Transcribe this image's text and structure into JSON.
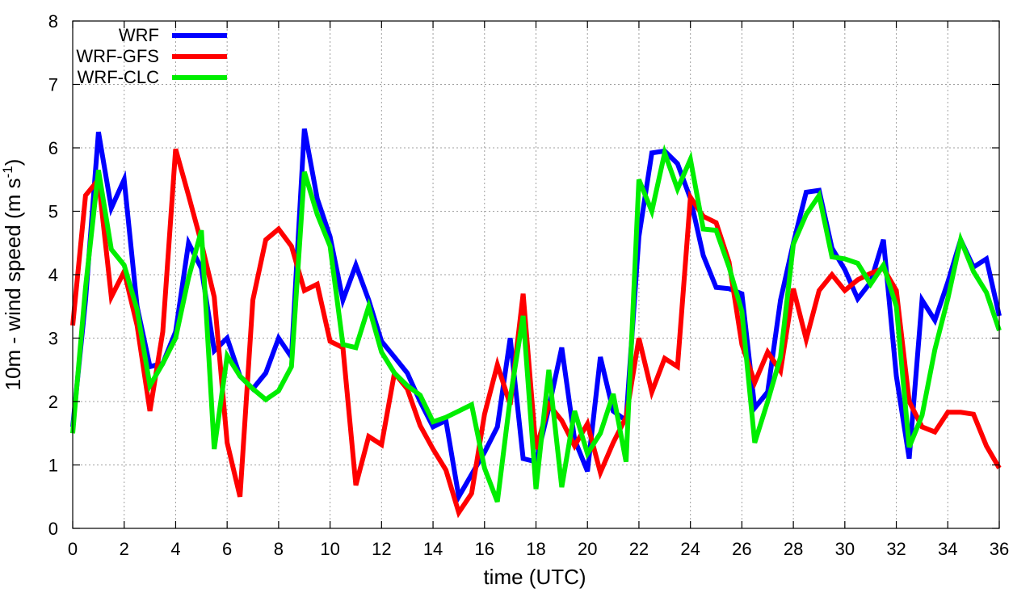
{
  "chart_data": {
    "type": "line",
    "title": "",
    "xlabel": "time (UTC)",
    "ylabel_main": "10m - wind speed  (m s",
    "ylabel_sup": "-1",
    "ylabel_close": ")",
    "xlim": [
      0,
      36
    ],
    "ylim": [
      0,
      8
    ],
    "xticks": [
      0,
      2,
      4,
      6,
      8,
      10,
      12,
      14,
      16,
      18,
      20,
      22,
      24,
      26,
      28,
      30,
      32,
      34,
      36
    ],
    "yticks": [
      0,
      1,
      2,
      3,
      4,
      5,
      6,
      7,
      8
    ],
    "grid": true,
    "legend_position": "top-left",
    "x": [
      0,
      0.5,
      1,
      1.5,
      2,
      2.5,
      3,
      3.5,
      4,
      4.5,
      5,
      5.5,
      6,
      6.5,
      7,
      7.5,
      8,
      8.5,
      9,
      9.5,
      10,
      10.5,
      11,
      11.5,
      12,
      12.5,
      13,
      13.5,
      14,
      14.5,
      15,
      15.5,
      16,
      16.5,
      17,
      17.5,
      18,
      18.5,
      19,
      19.5,
      20,
      20.5,
      21,
      21.5,
      22,
      22.5,
      23,
      23.5,
      24,
      24.5,
      25,
      25.5,
      26,
      26.5,
      27,
      27.5,
      28,
      28.5,
      29,
      29.5,
      30,
      30.5,
      31,
      31.5,
      32,
      32.5,
      33,
      33.5,
      34,
      34.5,
      35,
      35.5,
      36
    ],
    "series": [
      {
        "name": "WRF",
        "color": "#0000ff",
        "values": [
          1.6,
          3.6,
          6.25,
          5.05,
          5.5,
          3.5,
          2.55,
          2.6,
          3.1,
          4.5,
          4.1,
          2.8,
          3.0,
          2.4,
          2.2,
          2.45,
          3.0,
          2.7,
          6.3,
          5.2,
          4.6,
          3.6,
          4.15,
          3.6,
          2.95,
          2.7,
          2.45,
          2.0,
          1.6,
          1.7,
          0.5,
          0.85,
          1.2,
          1.6,
          3.0,
          1.1,
          1.05,
          1.9,
          2.85,
          1.4,
          0.9,
          2.7,
          1.85,
          1.7,
          4.6,
          5.92,
          5.95,
          5.75,
          5.2,
          4.3,
          3.8,
          3.78,
          3.7,
          1.9,
          2.15,
          3.6,
          4.5,
          5.3,
          5.33,
          4.42,
          4.08,
          3.62,
          3.88,
          4.55,
          2.4,
          1.1,
          3.6,
          3.28,
          3.88,
          4.55,
          4.12,
          4.25,
          3.35
        ]
      },
      {
        "name": "WRF-GFS",
        "color": "#ff0000",
        "values": [
          3.2,
          5.25,
          5.5,
          3.65,
          4.05,
          3.2,
          1.85,
          3.1,
          5.98,
          5.25,
          4.5,
          3.65,
          1.35,
          0.5,
          3.6,
          4.55,
          4.72,
          4.45,
          3.75,
          3.85,
          2.95,
          2.85,
          0.68,
          1.45,
          1.32,
          2.45,
          2.2,
          1.62,
          1.25,
          0.92,
          0.25,
          0.55,
          1.8,
          2.58,
          1.95,
          3.7,
          1.25,
          1.95,
          1.7,
          1.3,
          1.65,
          0.88,
          1.35,
          1.75,
          3.0,
          2.15,
          2.68,
          2.55,
          5.22,
          4.92,
          4.82,
          4.2,
          2.9,
          2.3,
          2.78,
          2.48,
          3.78,
          2.98,
          3.75,
          4.0,
          3.75,
          3.92,
          4.02,
          4.1,
          3.75,
          2.0,
          1.6,
          1.52,
          1.83,
          1.83,
          1.8,
          1.3,
          0.95
        ]
      },
      {
        "name": "WRF-CLC",
        "color": "#00ee00",
        "values": [
          1.5,
          3.8,
          5.65,
          4.4,
          4.15,
          3.45,
          2.25,
          2.6,
          3.0,
          3.95,
          4.7,
          1.25,
          2.72,
          2.4,
          2.2,
          2.03,
          2.17,
          2.55,
          5.62,
          4.95,
          4.45,
          2.9,
          2.85,
          3.5,
          2.78,
          2.45,
          2.25,
          2.1,
          1.68,
          1.75,
          1.85,
          1.95,
          0.95,
          0.42,
          2.05,
          3.35,
          0.62,
          2.5,
          0.65,
          1.85,
          1.18,
          1.5,
          2.12,
          1.05,
          5.5,
          5.0,
          5.92,
          5.35,
          5.82,
          4.72,
          4.7,
          4.12,
          3.42,
          1.35,
          2.0,
          2.7,
          4.48,
          4.95,
          5.25,
          4.28,
          4.25,
          4.18,
          3.85,
          4.15,
          3.5,
          1.28,
          1.78,
          2.82,
          3.62,
          4.55,
          4.05,
          3.72,
          3.12
        ]
      }
    ]
  }
}
